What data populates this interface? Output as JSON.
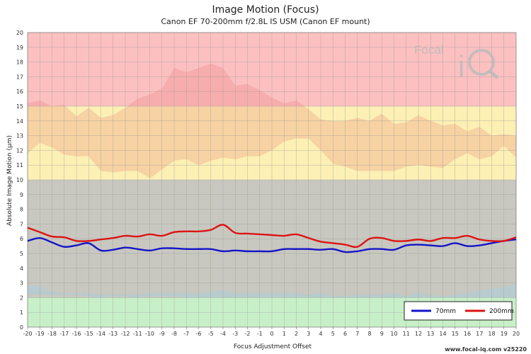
{
  "chart_data": {
    "type": "line",
    "title": "Image Motion (Focus)",
    "subtitle": "Canon EF 70-200mm f/2.8L IS USM (Canon EF mount)",
    "xlabel": "Focus Adjustment Offset",
    "ylabel": "Absolute Image Motion (µm)",
    "xlim": [
      -20,
      20
    ],
    "ylim": [
      0,
      20
    ],
    "x_ticks": [
      -20,
      -19,
      -18,
      -17,
      -16,
      -15,
      -14,
      -13,
      -12,
      -11,
      -10,
      -9,
      -8,
      -7,
      -6,
      -5,
      -4,
      -3,
      -2,
      -1,
      0,
      1,
      2,
      3,
      4,
      5,
      6,
      7,
      8,
      9,
      10,
      11,
      12,
      13,
      14,
      15,
      16,
      17,
      18,
      19,
      20
    ],
    "y_ticks": [
      0,
      1,
      2,
      3,
      4,
      5,
      6,
      7,
      8,
      9,
      10,
      11,
      12,
      13,
      14,
      15,
      16,
      17,
      18,
      19,
      20
    ],
    "grid": true,
    "legend_position": "bottom-right",
    "zones": [
      {
        "from": 0,
        "to": 2,
        "color": "#c8f0c8"
      },
      {
        "from": 2,
        "to": 10,
        "color": "#c8c8c0"
      },
      {
        "from": 10,
        "to": 15,
        "color": "#fcf0b4"
      },
      {
        "from": 15,
        "to": 20,
        "color": "#fcc0c0"
      }
    ],
    "x": [
      -20,
      -19,
      -18,
      -17,
      -16,
      -15,
      -14,
      -13,
      -12,
      -11,
      -10,
      -9,
      -8,
      -7,
      -6,
      -5,
      -4,
      -3,
      -2,
      -1,
      0,
      1,
      2,
      3,
      4,
      5,
      6,
      7,
      8,
      9,
      10,
      11,
      12,
      13,
      14,
      15,
      16,
      17,
      18,
      19,
      20
    ],
    "series": [
      {
        "name": "70mm",
        "color": "#1414c8",
        "values": [
          5.85,
          6.05,
          5.75,
          5.45,
          5.55,
          5.7,
          5.2,
          5.25,
          5.4,
          5.3,
          5.2,
          5.35,
          5.35,
          5.3,
          5.3,
          5.3,
          5.15,
          5.2,
          5.15,
          5.15,
          5.15,
          5.3,
          5.3,
          5.3,
          5.25,
          5.3,
          5.1,
          5.15,
          5.3,
          5.3,
          5.25,
          5.55,
          5.6,
          5.55,
          5.5,
          5.7,
          5.5,
          5.55,
          5.7,
          5.85,
          5.95
        ]
      },
      {
        "name": "200mm",
        "color": "#dc1414",
        "values": [
          6.75,
          6.45,
          6.15,
          6.1,
          5.85,
          5.85,
          5.95,
          6.05,
          6.2,
          6.15,
          6.3,
          6.2,
          6.45,
          6.5,
          6.5,
          6.6,
          6.95,
          6.4,
          6.35,
          6.3,
          6.25,
          6.2,
          6.3,
          6.05,
          5.8,
          5.7,
          5.6,
          5.45,
          6.0,
          6.05,
          5.85,
          5.85,
          5.95,
          5.85,
          6.05,
          6.05,
          6.2,
          5.95,
          5.85,
          5.85,
          6.1
        ]
      }
    ],
    "bands": [
      {
        "name": "upper-band-light",
        "color": "#e86a6a",
        "opacity": 0.22,
        "upper": [
          15.2,
          15.4,
          15.0,
          15.1,
          14.3,
          14.9,
          14.2,
          14.4,
          14.9,
          15.5,
          15.8,
          16.2,
          17.6,
          17.3,
          17.6,
          17.9,
          17.6,
          16.4,
          16.5,
          16.1,
          15.6,
          15.2,
          15.4,
          14.8,
          14.1,
          14.0,
          14.0,
          14.2,
          14.0,
          14.5,
          13.8,
          13.9,
          14.4,
          14.0,
          13.7,
          13.8,
          13.3,
          13.6,
          13.0,
          13.1,
          13.0
        ],
        "lower": [
          11.8,
          12.5,
          12.2,
          11.7,
          11.6,
          11.6,
          10.6,
          10.5,
          10.6,
          10.6,
          10.1,
          10.7,
          11.3,
          11.4,
          11.0,
          11.3,
          11.5,
          11.4,
          11.6,
          11.6,
          12.0,
          12.6,
          12.8,
          12.8,
          12.0,
          11.1,
          10.9,
          10.6,
          10.6,
          10.6,
          10.6,
          10.9,
          11.0,
          10.9,
          10.8,
          11.4,
          11.8,
          11.4,
          11.6,
          12.3,
          11.5
        ]
      },
      {
        "name": "lower-band-light",
        "color": "#9ad0e8",
        "opacity": 0.35,
        "upper": [
          2.8,
          2.8,
          2.4,
          2.3,
          2.3,
          2.3,
          2.2,
          2.2,
          2.2,
          2.2,
          2.3,
          2.3,
          2.3,
          2.3,
          2.3,
          2.4,
          2.5,
          2.3,
          2.3,
          2.3,
          2.3,
          2.3,
          2.3,
          2.2,
          2.3,
          2.1,
          2.1,
          2.2,
          2.2,
          2.2,
          2.3,
          2.1,
          2.3,
          2.2,
          2.1,
          2.2,
          2.3,
          2.5,
          2.6,
          2.7,
          2.9
        ],
        "lower": [
          2.2,
          2.2,
          2.2,
          2.2,
          2.2,
          2.1,
          2.0,
          2.1,
          2.1,
          2.0,
          2.1,
          2.1,
          2.1,
          2.0,
          2.0,
          2.0,
          2.0,
          2.0,
          2.0,
          2.0,
          2.0,
          2.0,
          2.0,
          2.0,
          2.0,
          2.0,
          2.0,
          2.0,
          2.0,
          2.0,
          2.0,
          2.0,
          2.0,
          2.0,
          2.0,
          2.0,
          2.0,
          2.0,
          2.0,
          2.0,
          2.0
        ]
      }
    ]
  },
  "footer": "www.focal-iq.com  v25220",
  "logo": {
    "text_top": "Focal",
    "text_big": "iQ"
  }
}
